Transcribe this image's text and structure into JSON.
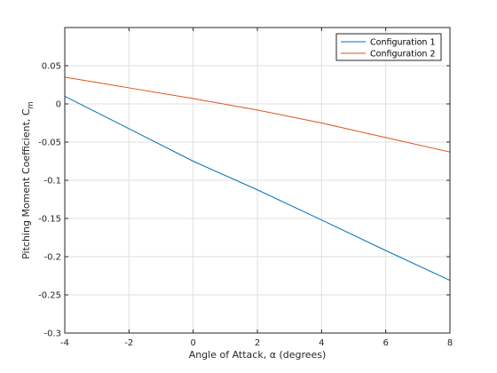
{
  "chart_data": {
    "type": "line",
    "title": "",
    "xlabel": "Angle of Attack, α (degrees)",
    "ylabel": "Pitching Moment Coefficient, C",
    "ylabel_subscript": "m",
    "xlim": [
      -4,
      8
    ],
    "ylim": [
      -0.3,
      0.1
    ],
    "xticks": [
      -4,
      -2,
      0,
      2,
      4,
      6,
      8
    ],
    "xtick_labels": [
      "-4",
      "-2",
      "0",
      "2",
      "4",
      "6",
      "8"
    ],
    "yticks": [
      -0.3,
      -0.25,
      -0.2,
      -0.15,
      -0.1,
      -0.05,
      0,
      0.05
    ],
    "ytick_labels": [
      "-0.3",
      "-0.25",
      "-0.2",
      "-0.15",
      "-0.1",
      "-0.05",
      "0",
      "0.05"
    ],
    "grid": true,
    "legend_position": "top-right",
    "series": [
      {
        "name": "Configuration 1",
        "color": "#0072BD",
        "x": [
          -4,
          -2,
          0,
          2,
          4,
          6,
          8
        ],
        "y": [
          0.01,
          -0.0325,
          -0.075,
          -0.1125,
          -0.152,
          -0.192,
          -0.231
        ]
      },
      {
        "name": "Configuration 2",
        "color": "#D95319",
        "x": [
          -4,
          -2,
          0,
          2,
          4,
          6,
          8
        ],
        "y": [
          0.035,
          0.021,
          0.007,
          -0.008,
          -0.025,
          -0.044,
          -0.063
        ]
      }
    ]
  }
}
